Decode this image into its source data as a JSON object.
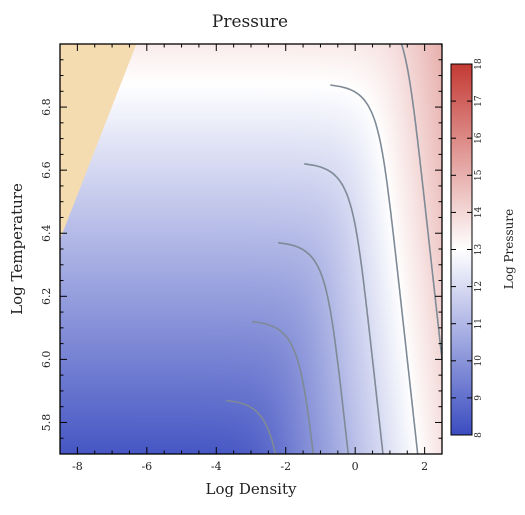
{
  "chart_data": {
    "type": "heatmap",
    "title": "Pressure",
    "xlabel": "Log Density",
    "ylabel": "Log Temperature",
    "xlim": [
      -8.5,
      2.5
    ],
    "ylim": [
      5.7,
      7.0
    ],
    "xticks": [
      "-8",
      "-6",
      "-4",
      "-2",
      "0",
      "2"
    ],
    "yticks": [
      "5.8",
      "6.0",
      "6.2",
      "6.4",
      "6.6",
      "6.8"
    ],
    "colorbar": {
      "label": "Log Pressure",
      "range": [
        8,
        18
      ],
      "ticks": [
        "8",
        "9",
        "10",
        "11",
        "12",
        "13",
        "14",
        "15",
        "16",
        "17",
        "18"
      ]
    },
    "colormap": {
      "low": "#3b4cc0",
      "mid": "#ffffff",
      "high": "#c43a34",
      "mid_value": 13
    },
    "contour_color": "#7f8a96",
    "excluded_region_color": "#f4dcb0",
    "contour_levels": [
      9,
      10,
      11,
      12,
      13,
      14,
      15,
      16,
      17,
      18
    ]
  }
}
